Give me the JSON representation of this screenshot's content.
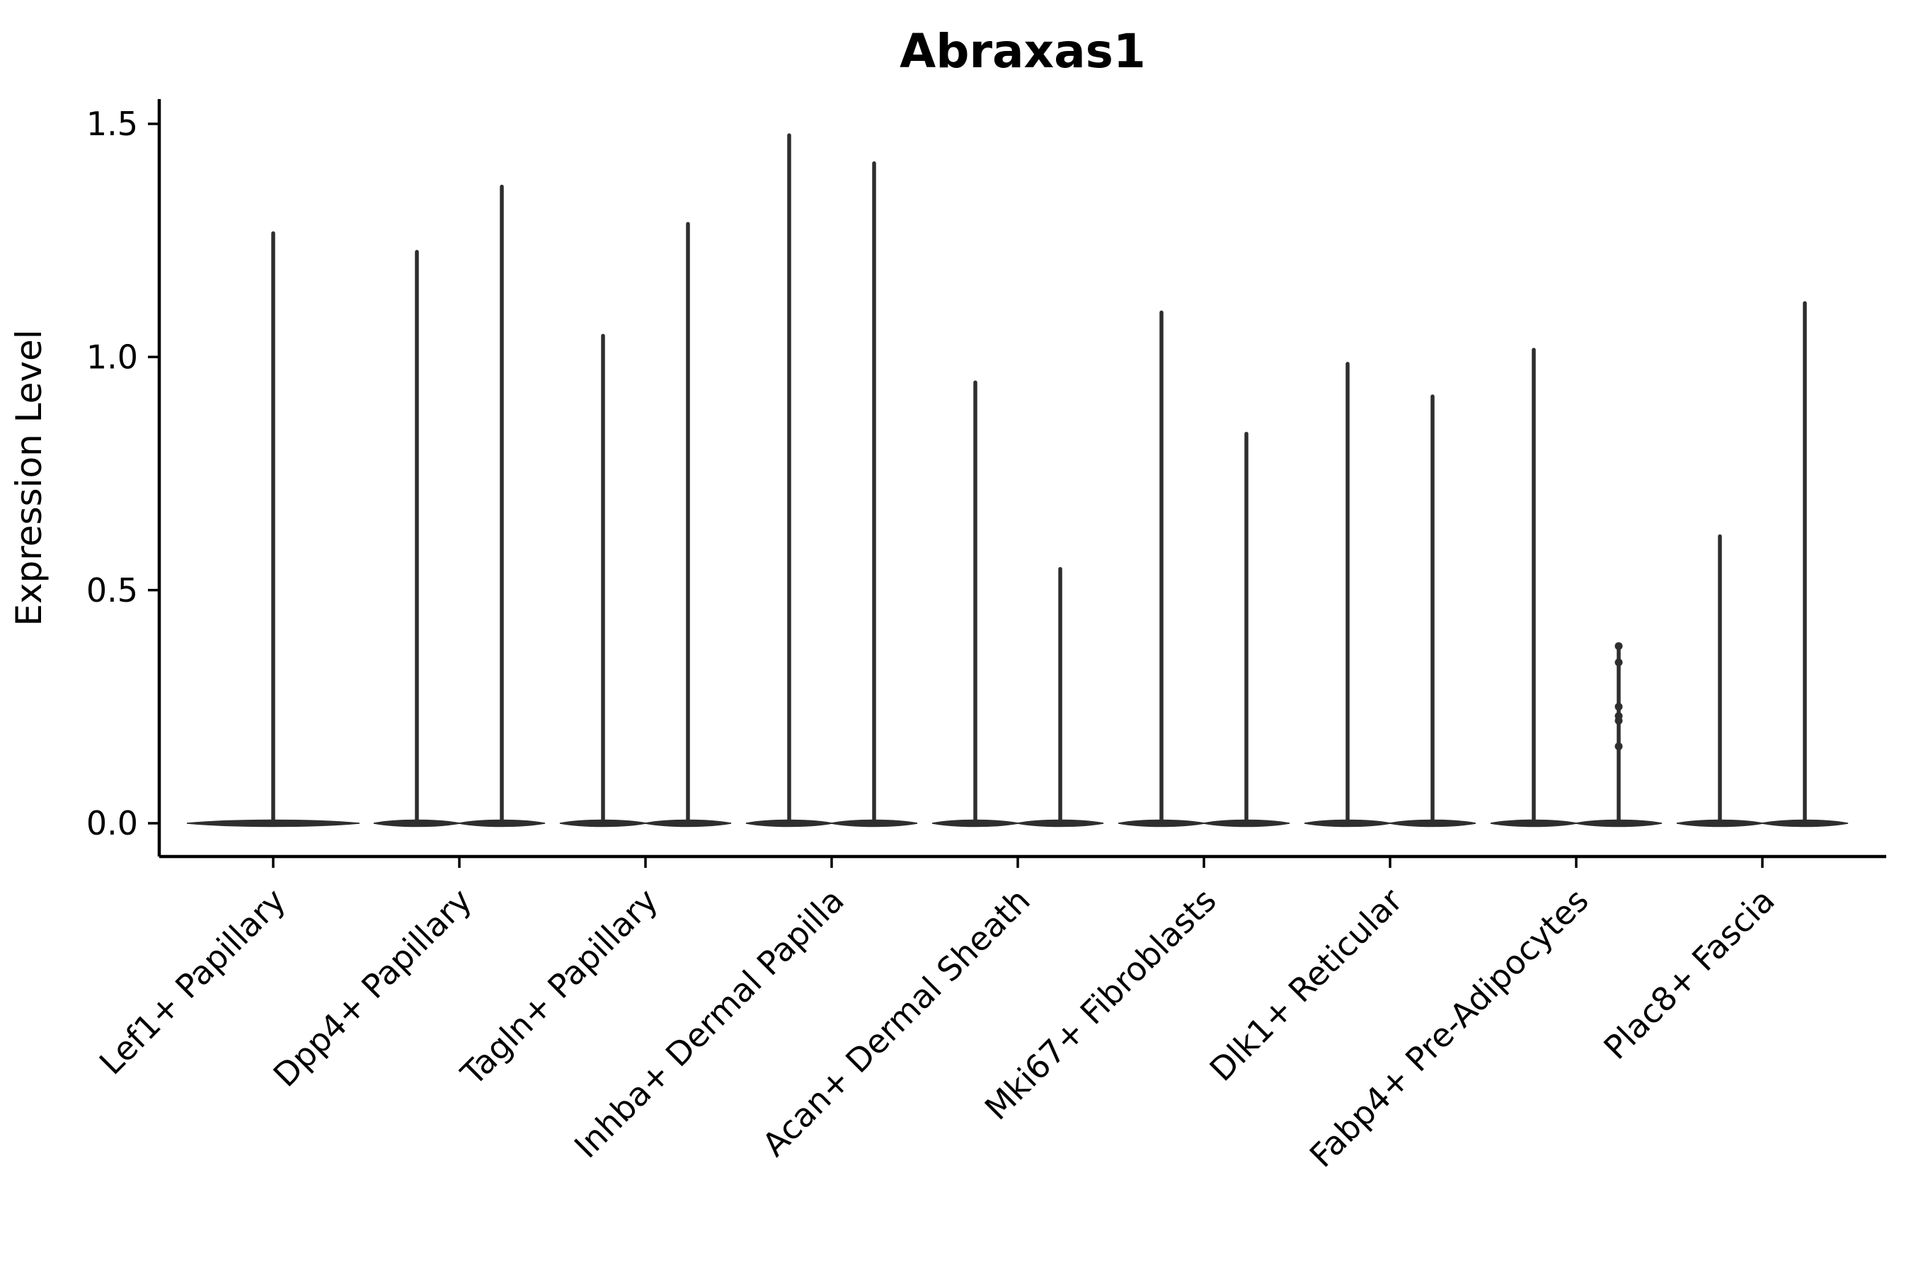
{
  "title": "Abraxas1",
  "axis": {
    "ylabel": "Expression Level"
  },
  "chart_data": {
    "type": "violin",
    "title": "Abraxas1",
    "xlabel": "",
    "ylabel": "Expression Level",
    "ylim": [
      -0.07,
      1.55
    ],
    "yticks": [
      "0.0",
      "0.5",
      "1.0",
      "1.5"
    ],
    "grid": false,
    "legend": "none",
    "violin_color": "#2e2e2e",
    "axis_color": "#000000",
    "baseline_value": 0.0,
    "categories": [
      "Lef1+ Papillary",
      "Dpp4+ Papillary",
      "Tagln+ Papillary",
      "Inhba+ Dermal Papilla",
      "Acan+ Dermal Sheath",
      "Mki67+ Fibroblasts",
      "Dlk1+ Reticular",
      "Fabp4+ Pre-Adipocytes",
      "Plac8+ Fascia"
    ],
    "series": [
      {
        "category": "Lef1+ Papillary",
        "violins": [
          {
            "max": 1.27
          }
        ]
      },
      {
        "category": "Dpp4+ Papillary",
        "violins": [
          {
            "max": 1.23
          },
          {
            "max": 1.37
          }
        ]
      },
      {
        "category": "Tagln+ Papillary",
        "violins": [
          {
            "max": 1.05
          },
          {
            "max": 1.29
          }
        ]
      },
      {
        "category": "Inhba+ Dermal Papilla",
        "violins": [
          {
            "max": 1.48
          },
          {
            "max": 1.42
          }
        ]
      },
      {
        "category": "Acan+ Dermal Sheath",
        "violins": [
          {
            "max": 0.95
          },
          {
            "max": 0.55
          }
        ]
      },
      {
        "category": "Mki67+ Fibroblasts",
        "violins": [
          {
            "max": 1.1
          },
          {
            "max": 0.84
          }
        ]
      },
      {
        "category": "Dlk1+ Reticular",
        "violins": [
          {
            "max": 0.99
          },
          {
            "max": 0.92
          }
        ]
      },
      {
        "category": "Fabp4+ Pre-Adipocytes",
        "violins": [
          {
            "max": 1.02
          },
          {
            "max": 0.38,
            "points": [
              0.38,
              0.345,
              0.25,
              0.23,
              0.22,
              0.165
            ]
          }
        ]
      },
      {
        "category": "Plac8+ Fascia",
        "violins": [
          {
            "max": 0.62
          },
          {
            "max": 1.12
          }
        ]
      }
    ]
  }
}
